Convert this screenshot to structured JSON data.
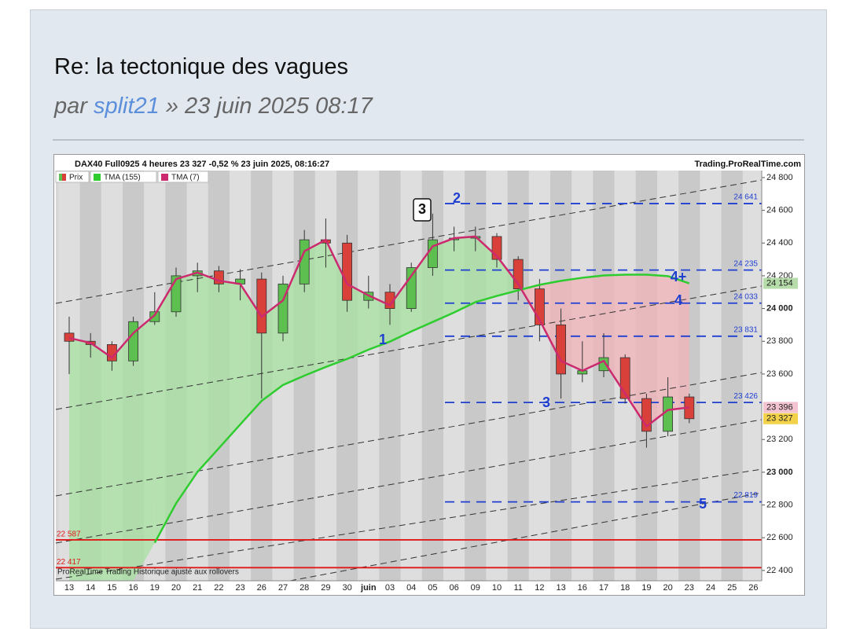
{
  "post": {
    "title": "Re: la tectonique des vagues",
    "by": "par",
    "author": "split21",
    "date": "» 23 juin 2025 08:17"
  },
  "chart_data": {
    "type": "candlestick",
    "title": "DAX40 Full0925 4 heures 23 327 -0,52 % 23 juin 2025, 08:16:27",
    "source": "Trading.ProRealTime.com",
    "footer": "ProRealTime Trading  Historique ajusté aux rollovers",
    "categories": [
      "13",
      "14",
      "15",
      "16",
      "19",
      "20",
      "21",
      "22",
      "23",
      "26",
      "27",
      "28",
      "29",
      "30",
      "juin",
      "03",
      "04",
      "05",
      "06",
      "09",
      "10",
      "11",
      "12",
      "13",
      "16",
      "17",
      "18",
      "19",
      "20",
      "23",
      "24",
      "25",
      "26"
    ],
    "ylim": [
      22337,
      24843
    ],
    "yticks": [
      {
        "value": 24800,
        "label": "24 800"
      },
      {
        "value": 24600,
        "label": "24 600"
      },
      {
        "value": 24400,
        "label": "24 400"
      },
      {
        "value": 24200,
        "label": "24 200"
      },
      {
        "value": 24000,
        "label": "24 000"
      },
      {
        "value": 23800,
        "label": "23 800"
      },
      {
        "value": 23600,
        "label": "23 600"
      },
      {
        "value": 23200,
        "label": "23 200"
      },
      {
        "value": 23000,
        "label": "23 000"
      },
      {
        "value": 22800,
        "label": "22 800"
      },
      {
        "value": 22600,
        "label": "22 600"
      },
      {
        "value": 22400,
        "label": "22 400"
      }
    ],
    "series": [
      {
        "name": "Prix",
        "up_color": "#5cbf4f",
        "down_color": "#d9403a",
        "open": [
          23850,
          23800,
          23780,
          23680,
          23920,
          23980,
          24200,
          24230,
          24150,
          24180,
          23850,
          24150,
          24420,
          24400,
          24050,
          24100,
          24000,
          24250,
          24420,
          24430,
          24440,
          24300,
          24120,
          23900,
          23600,
          23620,
          23700,
          23450,
          23250,
          23460,
          null,
          null,
          null
        ],
        "high": [
          23950,
          23850,
          23800,
          23950,
          24100,
          24250,
          24280,
          24260,
          24240,
          24220,
          24200,
          24480,
          24550,
          24450,
          24200,
          24150,
          24280,
          24580,
          24500,
          24500,
          24460,
          24320,
          24180,
          24000,
          23800,
          23850,
          23720,
          23480,
          23580,
          23480,
          null,
          null,
          null
        ],
        "low": [
          23600,
          23700,
          23620,
          23650,
          23900,
          23950,
          24100,
          24100,
          24050,
          23450,
          23800,
          24100,
          24250,
          23980,
          24000,
          23900,
          23980,
          24200,
          24350,
          24350,
          24250,
          24050,
          23800,
          23450,
          23550,
          23580,
          23420,
          23150,
          23220,
          23300,
          null,
          null,
          null
        ],
        "close": [
          23800,
          23780,
          23680,
          23920,
          23980,
          24200,
          24230,
          24150,
          24180,
          23850,
          24150,
          24420,
          24400,
          24050,
          24100,
          24000,
          24250,
          24420,
          24430,
          24440,
          24300,
          24120,
          23900,
          23600,
          23620,
          23700,
          23450,
          23250,
          23460,
          23327,
          null,
          null,
          null
        ]
      },
      {
        "name": "TMA (155)",
        "color": "#2ecc2e",
        "values": [
          null,
          null,
          null,
          null,
          22569,
          22810,
          23002,
          23147,
          23292,
          23436,
          23533,
          23590,
          23643,
          23692,
          23749,
          23798,
          23860,
          23918,
          23976,
          24039,
          24077,
          24111,
          24145,
          24169,
          24188,
          24202,
          24207,
          24207,
          24198,
          24154,
          null,
          null,
          null
        ]
      },
      {
        "name": "TMA (7)",
        "color": "#cc2a6e",
        "values": [
          23820,
          23790,
          23700,
          23850,
          23960,
          24180,
          24220,
          24170,
          24150,
          23950,
          24050,
          24350,
          24420,
          24150,
          24080,
          24020,
          24200,
          24380,
          24430,
          24440,
          24320,
          24150,
          23930,
          23680,
          23620,
          23680,
          23480,
          23280,
          23380,
          23396,
          null,
          null,
          null
        ]
      }
    ],
    "levels": [
      {
        "value": 24641,
        "label": "24 641"
      },
      {
        "value": 24235,
        "label": "24 235"
      },
      {
        "value": 24033,
        "label": "24 033"
      },
      {
        "value": 23831,
        "label": "23 831"
      },
      {
        "value": 23426,
        "label": "23 426"
      },
      {
        "value": 22819,
        "label": "22 819"
      }
    ],
    "level_color": "#1f3fd1",
    "supports": [
      {
        "value": 22587,
        "label": "22 587"
      },
      {
        "value": 22417,
        "label": "22 417"
      }
    ],
    "support_color": "#e01818",
    "markers": [
      {
        "value": 24154,
        "label": "24 154",
        "color": "#b5dca9"
      },
      {
        "value": 23396,
        "label": "23 396",
        "color": "#f3c3d2"
      },
      {
        "value": 23327,
        "label": "23 327",
        "color": "#f2d24a"
      }
    ],
    "annotations": [
      "3",
      "2",
      "1",
      "4+",
      "4",
      "3",
      "5"
    ]
  }
}
